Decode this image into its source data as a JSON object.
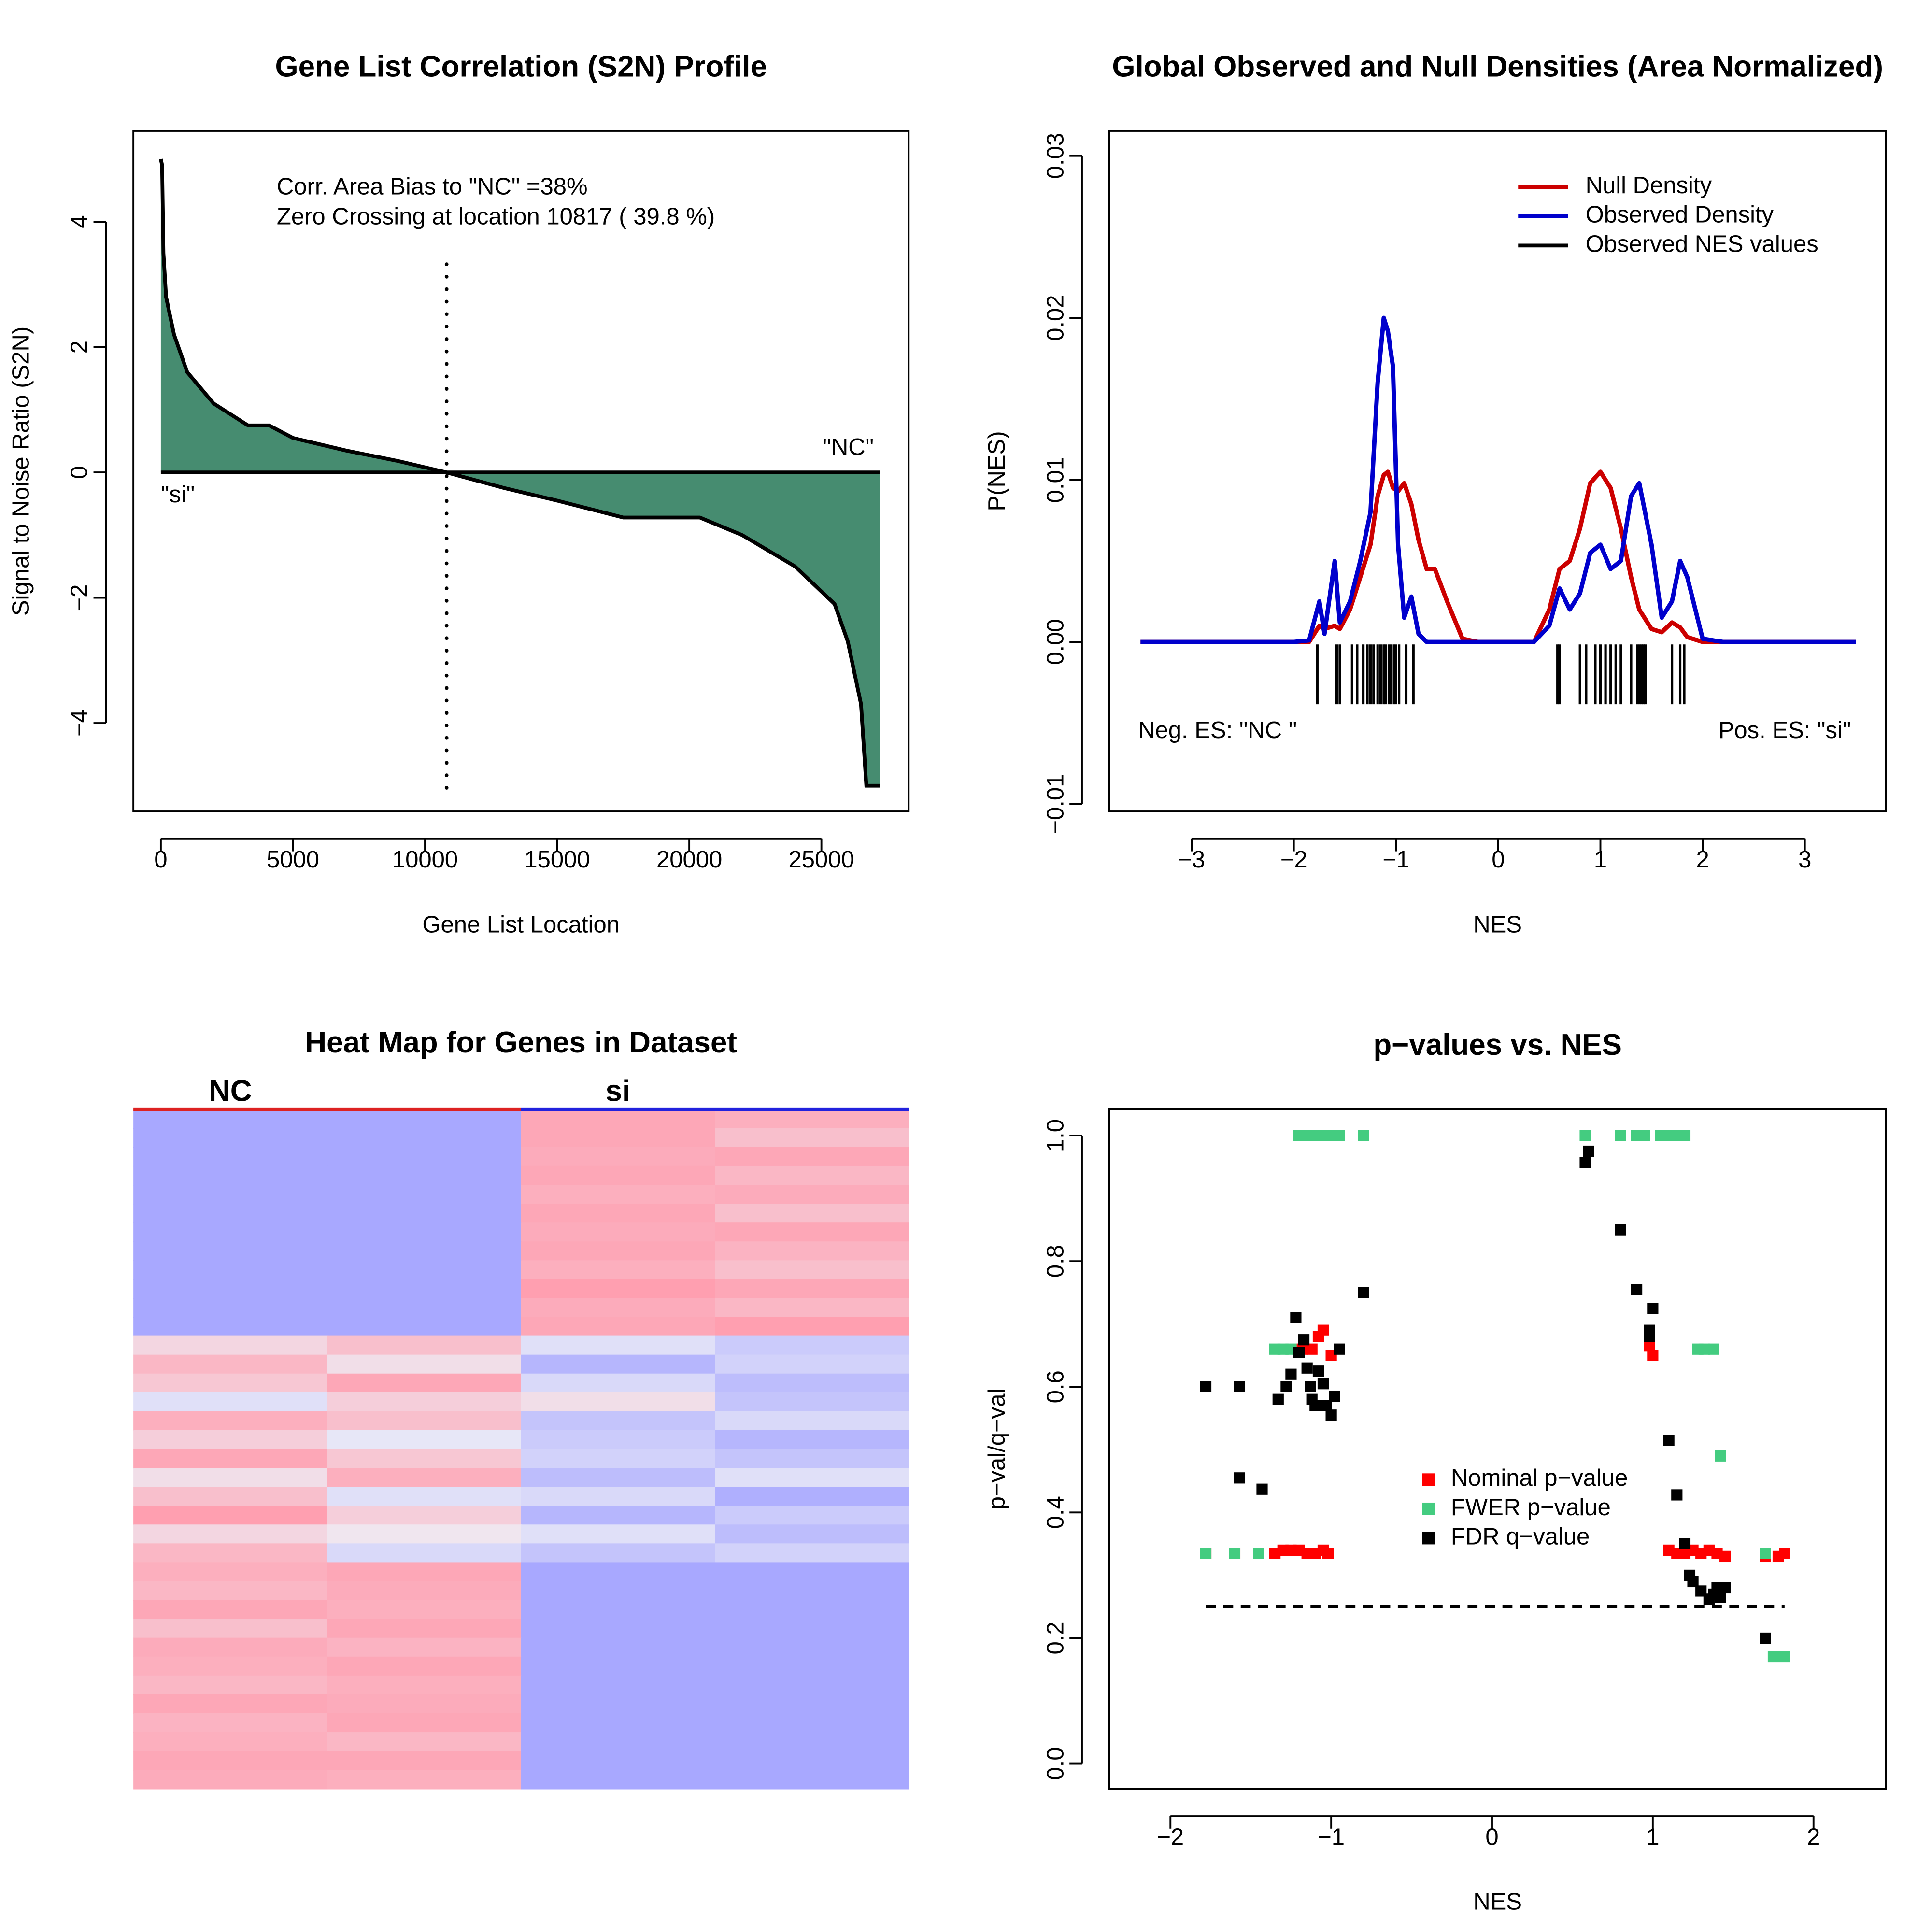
{
  "chart_data": [
    {
      "type": "area",
      "title": "Gene List Correlation (S2N) Profile",
      "x_label": "Gene List Location",
      "y_label": "Signal to Noise Ratio (S2N)",
      "x": [
        0,
        50,
        100,
        200,
        500,
        1000,
        2000,
        3300,
        4100,
        5000,
        7000,
        9000,
        10817,
        13000,
        15000,
        17500,
        20400,
        22000,
        24000,
        25500,
        26000,
        26500,
        26700,
        27200
      ],
      "values": [
        5,
        4.9,
        3.5,
        2.8,
        2.2,
        1.6,
        1.1,
        0.75,
        0.75,
        0.55,
        0.35,
        0.18,
        0,
        -0.25,
        -0.45,
        -0.72,
        -0.72,
        -1.0,
        -1.5,
        -2.1,
        -2.7,
        -3.7,
        -5.0,
        -5.0
      ],
      "color": "#468c70",
      "xlim": [
        -1038,
        28302
      ],
      "xticks": [
        0,
        5000,
        10000,
        15000,
        20000,
        25000
      ],
      "ylim": [
        -5.41,
        5.45
      ],
      "yticks": [
        {
          "value": -4,
          "label": "−4"
        },
        {
          "value": -2,
          "label": "−2"
        },
        0,
        2,
        4
      ],
      "vline": 10817,
      "annotations": [
        "Corr. Area Bias to \"NC\" =38%",
        "Zero Crossing at location  10817  ( 39.8  %)",
        "\"NC\"",
        "\"si\""
      ]
    },
    {
      "type": "line",
      "title": "Global Observed and Null Densities (Area Normalized)",
      "x_label": "NES",
      "y_label": "P(NES)",
      "x": [
        -3.5,
        -2,
        -1.85,
        -1.75,
        -1.7,
        -1.6,
        -1.55,
        -1.45,
        -1.35,
        -1.25,
        -1.18,
        -1.12,
        -1.08,
        -1.03,
        -0.98,
        -0.92,
        -0.85,
        -0.78,
        -0.7,
        -0.62,
        -0.5,
        -0.35,
        -0.2,
        0,
        0.35,
        0.5,
        0.6,
        0.7,
        0.8,
        0.9,
        1.0,
        1.1,
        1.2,
        1.3,
        1.38,
        1.5,
        1.6,
        1.7,
        1.78,
        1.85,
        2.0,
        2.2,
        3.5
      ],
      "series": [
        {
          "name": "Null Density",
          "color": "#cc0000",
          "values": [
            0,
            0,
            0,
            0.001,
            0.0008,
            0.001,
            0.0008,
            0.002,
            0.004,
            0.006,
            0.009,
            0.0103,
            0.0105,
            0.0095,
            0.0093,
            0.0098,
            0.0085,
            0.0063,
            0.0045,
            0.0045,
            0.0025,
            0.0002,
            0,
            0,
            0,
            0.002,
            0.0045,
            0.005,
            0.007,
            0.0098,
            0.0105,
            0.0095,
            0.007,
            0.004,
            0.002,
            0.0008,
            0.0006,
            0.0012,
            0.0009,
            0.0003,
            0,
            0,
            0
          ]
        },
        {
          "name": "Observed Density",
          "color": "#0000cc",
          "values": [
            0,
            0,
            0.0001,
            0.0025,
            0.0005,
            0.005,
            0.0012,
            0.0025,
            0.005,
            0.008,
            0.016,
            0.02,
            0.0192,
            0.017,
            0.006,
            0.0015,
            0.0028,
            0.0005,
            0,
            0,
            0,
            0,
            0,
            0,
            0,
            0.001,
            0.0033,
            0.002,
            0.003,
            0.0055,
            0.006,
            0.0045,
            0.005,
            0.009,
            0.0098,
            0.006,
            0.0015,
            0.0025,
            0.005,
            0.004,
            0.0002,
            0,
            0
          ]
        }
      ],
      "rug": {
        "name": "Observed NES values",
        "color": "#000000",
        "x": [
          -1.77,
          -1.58,
          -1.55,
          -1.43,
          -1.38,
          -1.32,
          -1.28,
          -1.25,
          -1.22,
          -1.18,
          -1.15,
          -1.12,
          -1.1,
          -1.07,
          -1.05,
          -1.02,
          -1.0,
          -0.97,
          -0.9,
          -0.83,
          0.58,
          0.6,
          0.8,
          0.86,
          0.95,
          1.0,
          1.05,
          1.1,
          1.15,
          1.2,
          1.3,
          1.36,
          1.38,
          1.4,
          1.42,
          1.44,
          1.7,
          1.78,
          1.82
        ]
      },
      "xlim": [
        -3.805,
        3.793
      ],
      "xticks": [
        {
          "value": -3,
          "label": "−3"
        },
        {
          "value": -2,
          "label": "−2"
        },
        {
          "value": -1,
          "label": "−1"
        },
        0,
        1,
        2,
        3
      ],
      "ylim": [
        -0.01046,
        0.03154
      ],
      "yticks": [
        {
          "value": -0.01,
          "label": "−0.01"
        },
        {
          "value": 0,
          "label": "0.00"
        },
        0.01,
        0.02,
        0.03
      ],
      "legend": "top-right",
      "annotations": [
        "Neg. ES: \"NC \"",
        "Pos. ES: \"si\""
      ]
    },
    {
      "type": "heatmap",
      "title": "Heat Map for Genes in Dataset",
      "groups": [
        {
          "name": "NC",
          "color": "#dd2222"
        },
        {
          "name": "si",
          "color": "#2222dd"
        }
      ],
      "low_color": "#a8a8ff",
      "mid_color": "#eeeef6",
      "high_color": "#ff9fb0",
      "rows": [
        [
          -1,
          -1,
          0.9,
          0.8
        ],
        [
          -1,
          -1,
          0.9,
          0.6
        ],
        [
          -1,
          -1,
          0.85,
          0.9
        ],
        [
          -1,
          -1,
          0.9,
          0.7
        ],
        [
          -1,
          -1,
          0.8,
          0.85
        ],
        [
          -1,
          -1,
          0.9,
          0.6
        ],
        [
          -1,
          -1,
          0.85,
          0.9
        ],
        [
          -1,
          -1,
          0.9,
          0.75
        ],
        [
          -1,
          -1,
          0.8,
          0.6
        ],
        [
          -1,
          -1,
          1,
          0.9
        ],
        [
          -1,
          -1,
          0.85,
          0.7
        ],
        [
          -1,
          -1,
          0.9,
          1
        ],
        [
          0.3,
          0.6,
          -0.2,
          -0.5
        ],
        [
          0.7,
          0.2,
          -0.8,
          -0.4
        ],
        [
          0.5,
          0.9,
          -0.3,
          -0.7
        ],
        [
          -0.2,
          0.4,
          0.2,
          -0.6
        ],
        [
          0.8,
          0.6,
          -0.6,
          -0.3
        ],
        [
          0.4,
          -0.1,
          -0.5,
          -0.8
        ],
        [
          0.9,
          0.5,
          -0.4,
          -0.6
        ],
        [
          0.2,
          0.8,
          -0.7,
          -0.2
        ],
        [
          0.6,
          -0.2,
          -0.3,
          -0.9
        ],
        [
          1,
          0.4,
          -0.8,
          -0.5
        ],
        [
          0.3,
          0.1,
          -0.2,
          -0.7
        ],
        [
          0.7,
          -0.3,
          -0.6,
          -0.4
        ],
        [
          0.8,
          0.9,
          -1,
          -1
        ],
        [
          0.7,
          0.85,
          -1,
          -1
        ],
        [
          0.9,
          0.8,
          -1,
          -1
        ],
        [
          0.6,
          0.9,
          -1,
          -1
        ],
        [
          0.85,
          0.75,
          -1,
          -1
        ],
        [
          0.8,
          0.9,
          -1,
          -1
        ],
        [
          0.7,
          0.8,
          -1,
          -1
        ],
        [
          0.9,
          0.85,
          -1,
          -1
        ],
        [
          0.75,
          0.9,
          -1,
          -1
        ],
        [
          0.8,
          0.7,
          -1,
          -1
        ],
        [
          0.9,
          0.9,
          -1,
          -1
        ],
        [
          0.85,
          0.8,
          -1,
          -1
        ]
      ]
    },
    {
      "type": "scatter",
      "title": "p−values vs. NES",
      "x_label": "NES",
      "y_label": "p−val/q−val",
      "series": [
        {
          "name": "Nominal p−value",
          "color": "#ff0000",
          "x": [
            -1.78,
            -1.6,
            -1.45,
            -1.35,
            -1.3,
            -1.25,
            -1.2,
            -1.15,
            -1.1,
            -1.05,
            -1.02,
            -1.18,
            -1.12,
            -1.05,
            -1.0,
            -1.08,
            0.98,
            1.0,
            1.1,
            1.15,
            1.2,
            1.25,
            1.3,
            1.35,
            1.4,
            1.45,
            1.7,
            1.78,
            1.82
          ],
          "values": [
            0.335,
            0.335,
            0.335,
            0.335,
            0.34,
            0.34,
            0.34,
            0.335,
            0.335,
            0.34,
            0.335,
            0.66,
            0.66,
            0.69,
            0.65,
            0.68,
            0.665,
            0.65,
            0.34,
            0.335,
            0.335,
            0.34,
            0.335,
            0.34,
            0.335,
            0.33,
            0.33,
            0.33,
            0.335
          ]
        },
        {
          "name": "FWER p−value",
          "color": "#44cc80",
          "x": [
            -1.2,
            -1.15,
            -1.1,
            -1.05,
            -1.0,
            -0.95,
            -0.8,
            0.58,
            0.8,
            0.9,
            0.95,
            1.05,
            1.1,
            1.15,
            1.2,
            -1.35,
            -1.3,
            -1.25,
            1.28,
            1.32,
            1.38,
            1.42,
            -1.78,
            -1.6,
            -1.45,
            1.7,
            1.75,
            1.82
          ],
          "values": [
            1,
            1,
            1,
            1,
            1,
            1,
            1,
            1,
            1,
            1,
            1,
            1,
            1,
            1,
            1,
            0.66,
            0.66,
            0.66,
            0.66,
            0.66,
            0.66,
            0.49,
            0.335,
            0.335,
            0.335,
            0.335,
            0.17,
            0.17
          ]
        },
        {
          "name": "FDR q−value",
          "color": "#000000",
          "x": [
            -1.78,
            -1.57,
            -1.57,
            -1.43,
            -1.33,
            -1.28,
            -1.25,
            -1.22,
            -1.2,
            -1.17,
            -1.15,
            -1.13,
            -1.12,
            -1.1,
            -1.08,
            -1.05,
            -1.03,
            -1.0,
            -0.98,
            -0.95,
            -0.8,
            0.6,
            0.58,
            0.8,
            0.9,
            0.98,
            0.98,
            1.0,
            1.1,
            1.15,
            1.2,
            1.23,
            1.25,
            1.3,
            1.35,
            1.38,
            1.4,
            1.42,
            1.45,
            1.7
          ],
          "values": [
            0.6,
            0.6,
            0.455,
            0.437,
            0.58,
            0.6,
            0.62,
            0.71,
            0.655,
            0.675,
            0.63,
            0.6,
            0.58,
            0.57,
            0.625,
            0.605,
            0.57,
            0.555,
            0.585,
            0.66,
            0.75,
            0.975,
            0.957,
            0.85,
            0.755,
            0.69,
            0.68,
            0.725,
            0.515,
            0.428,
            0.35,
            0.3,
            0.29,
            0.275,
            0.262,
            0.27,
            0.28,
            0.265,
            0.28,
            0.2
          ]
        }
      ],
      "hline": {
        "y": 0.25,
        "x": [
          -1.78,
          1.82
        ]
      },
      "xlim": [
        -2.38,
        2.45
      ],
      "xticks": [
        {
          "value": -2,
          "label": "−2"
        },
        {
          "value": -1,
          "label": "−1"
        },
        0,
        1,
        2
      ],
      "ylim": [
        -0.0397,
        1.0417
      ],
      "yticks": [
        {
          "value": 0,
          "label": "0.0"
        },
        0.2,
        0.4,
        0.6,
        0.8,
        {
          "value": 1,
          "label": "1.0"
        }
      ],
      "legend": "center"
    }
  ]
}
